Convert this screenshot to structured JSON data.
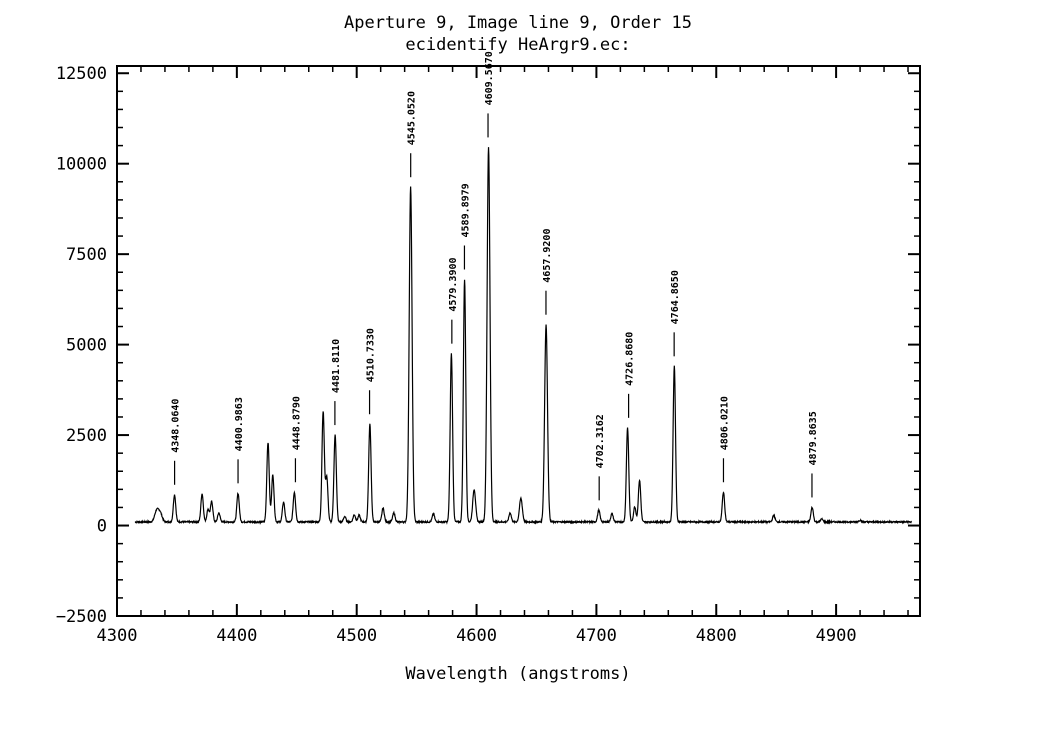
{
  "chart_data": {
    "type": "line",
    "title": "Aperture 9, Image line 9, Order 15",
    "subtitle": "ecidentify HeArgr9.ec:",
    "xlabel": "Wavelength (angstroms)",
    "ylabel": "",
    "xlim": [
      4300,
      4970
    ],
    "ylim": [
      -2500,
      12700
    ],
    "grid": false,
    "x_ticks": [
      4300,
      4400,
      4500,
      4600,
      4700,
      4800,
      4900
    ],
    "x_tick_labels": [
      "4300",
      "4400",
      "4500",
      "4600",
      "4700",
      "4800",
      "4900"
    ],
    "y_ticks": [
      -2500,
      0,
      2500,
      5000,
      7500,
      10000,
      12500
    ],
    "y_tick_labels": [
      "−2500",
      "0",
      "2500",
      "5000",
      "7500",
      "10000",
      "12500"
    ],
    "continuum": 100,
    "x_range": [
      4315,
      4963
    ],
    "peaks": [
      {
        "x": 4333,
        "h": 300,
        "w": 1.6
      },
      {
        "x": 4336,
        "h": 250,
        "w": 1.6
      },
      {
        "x": 4348,
        "h": 750,
        "w": 1.0
      },
      {
        "x": 4371,
        "h": 780,
        "w": 1.0
      },
      {
        "x": 4376,
        "h": 350,
        "w": 1.0
      },
      {
        "x": 4379,
        "h": 560,
        "w": 1.0
      },
      {
        "x": 4385,
        "h": 250,
        "w": 1.0
      },
      {
        "x": 4401,
        "h": 790,
        "w": 1.0
      },
      {
        "x": 4426,
        "h": 2200,
        "w": 1.0
      },
      {
        "x": 4430,
        "h": 1300,
        "w": 1.0
      },
      {
        "x": 4439,
        "h": 550,
        "w": 1.0
      },
      {
        "x": 4448,
        "h": 820,
        "w": 1.0
      },
      {
        "x": 4472,
        "h": 3050,
        "w": 1.0
      },
      {
        "x": 4475,
        "h": 1250,
        "w": 1.0
      },
      {
        "x": 4482,
        "h": 2400,
        "w": 1.0
      },
      {
        "x": 4490,
        "h": 150,
        "w": 1.0
      },
      {
        "x": 4498,
        "h": 200,
        "w": 1.0
      },
      {
        "x": 4502,
        "h": 180,
        "w": 1.0
      },
      {
        "x": 4511,
        "h": 2700,
        "w": 1.0
      },
      {
        "x": 4522,
        "h": 380,
        "w": 1.0
      },
      {
        "x": 4531,
        "h": 250,
        "w": 1.0
      },
      {
        "x": 4545,
        "h": 9250,
        "w": 1.2
      },
      {
        "x": 4564,
        "h": 220,
        "w": 1.0
      },
      {
        "x": 4579,
        "h": 4650,
        "w": 1.0
      },
      {
        "x": 4590,
        "h": 6700,
        "w": 1.0
      },
      {
        "x": 4598,
        "h": 900,
        "w": 1.2
      },
      {
        "x": 4610,
        "h": 10350,
        "w": 1.2
      },
      {
        "x": 4628,
        "h": 250,
        "w": 1.0
      },
      {
        "x": 4637,
        "h": 650,
        "w": 1.2
      },
      {
        "x": 4658,
        "h": 5450,
        "w": 1.2
      },
      {
        "x": 4702,
        "h": 320,
        "w": 1.0
      },
      {
        "x": 4713,
        "h": 230,
        "w": 1.0
      },
      {
        "x": 4726,
        "h": 2600,
        "w": 1.0
      },
      {
        "x": 4732,
        "h": 420,
        "w": 1.0
      },
      {
        "x": 4736,
        "h": 1150,
        "w": 1.0
      },
      {
        "x": 4765,
        "h": 4300,
        "w": 1.0
      },
      {
        "x": 4806,
        "h": 820,
        "w": 1.0
      },
      {
        "x": 4848,
        "h": 180,
        "w": 1.0
      },
      {
        "x": 4880,
        "h": 400,
        "w": 1.0
      },
      {
        "x": 4888,
        "h": 80,
        "w": 1.0
      },
      {
        "x": 4920,
        "h": 50,
        "w": 1.0
      }
    ],
    "annotations": [
      {
        "label": "4348.0640",
        "x": 4348.06,
        "y": 850
      },
      {
        "label": "4400.9863",
        "x": 4400.99,
        "y": 890
      },
      {
        "label": "4448.8790",
        "x": 4448.88,
        "y": 920
      },
      {
        "label": "4481.8110",
        "x": 4481.81,
        "y": 2500
      },
      {
        "label": "4510.7330",
        "x": 4510.73,
        "y": 2800
      },
      {
        "label": "4545.0520",
        "x": 4545.05,
        "y": 9350
      },
      {
        "label": "4579.3900",
        "x": 4579.39,
        "y": 4750
      },
      {
        "label": "4589.8979",
        "x": 4589.9,
        "y": 6800
      },
      {
        "label": "4609.5670",
        "x": 4609.57,
        "y": 10450
      },
      {
        "label": "4657.9200",
        "x": 4657.92,
        "y": 5550
      },
      {
        "label": "4702.3162",
        "x": 4702.32,
        "y": 420
      },
      {
        "label": "4726.8680",
        "x": 4726.87,
        "y": 2700
      },
      {
        "label": "4764.8650",
        "x": 4764.87,
        "y": 4400
      },
      {
        "label": "4806.0210",
        "x": 4806.02,
        "y": 920
      },
      {
        "label": "4879.8635",
        "x": 4879.86,
        "y": 500
      }
    ]
  }
}
